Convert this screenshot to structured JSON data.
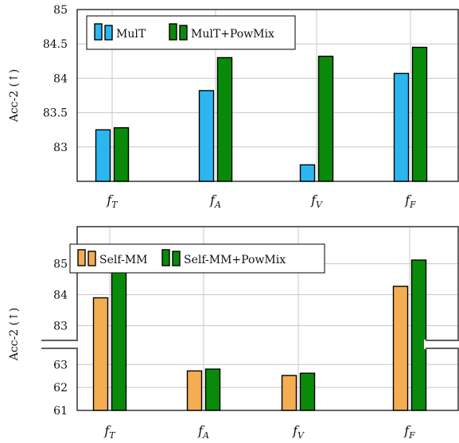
{
  "chart_data": [
    {
      "type": "bar",
      "categories": [
        "T",
        "A",
        "V",
        "F"
      ],
      "category_symbol": "f",
      "ylabel": "Acc-2 (↑)",
      "ylim": [
        82.5,
        85
      ],
      "yticks": [
        "85",
        "84.5",
        "84",
        "83.5",
        "83"
      ],
      "series": [
        {
          "name": "MulT",
          "color": "#2bb6f0",
          "values": [
            83.25,
            83.82,
            82.74,
            84.07
          ]
        },
        {
          "name": "MulT+PowMix",
          "color": "#0a8a0a",
          "values": [
            83.28,
            84.3,
            84.32,
            84.45
          ]
        }
      ],
      "legend_position": "top-left",
      "grid": true
    },
    {
      "type": "bar",
      "categories": [
        "T",
        "A",
        "V",
        "F"
      ],
      "category_symbol": "f",
      "ylabel": "Acc-2 (↑)",
      "broken_axis": true,
      "ylim_upper": [
        82.6,
        86.2
      ],
      "ylim_lower": [
        61,
        63.6
      ],
      "yticks": [
        "85",
        "84",
        "83",
        "63",
        "62",
        "61"
      ],
      "series": [
        {
          "name": "Self-MM",
          "color": "#f4ad52",
          "values": [
            83.9,
            62.72,
            62.52,
            84.27
          ]
        },
        {
          "name": "Self-MM+PowMix",
          "color": "#0a8a0a",
          "values": [
            84.75,
            62.8,
            62.62,
            85.12
          ]
        }
      ],
      "legend_position": "top-left",
      "grid": true
    }
  ]
}
